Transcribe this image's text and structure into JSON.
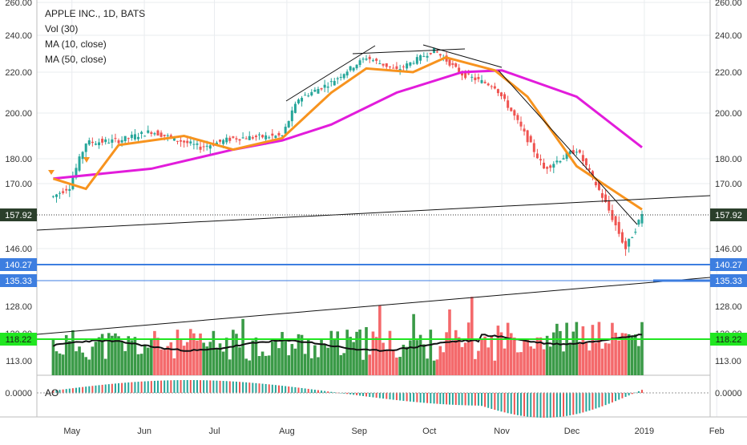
{
  "chart_data": {
    "type": "candlestick",
    "legend": [
      "APPLE INC., 1D, BATS",
      "Vol (30)",
      "MA (10, close)",
      "MA (50, close)"
    ],
    "ao_label": "AO",
    "x_labels": [
      "May",
      "Jun",
      "Jul",
      "Aug",
      "Sep",
      "Oct",
      "Nov",
      "Dec",
      "2019",
      "Feb"
    ],
    "price_axis_ticks": [
      "260.00",
      "240.00",
      "220.00",
      "200.00",
      "180.00",
      "170.00",
      "146.00"
    ],
    "volume_axis_ticks": [
      "128.00",
      "120.00",
      "113.00"
    ],
    "ao_axis_tick": "0.0000",
    "current_price_label": "157.92",
    "hline_labels": {
      "blue_upper": "140.27",
      "blue_lower": "135.33",
      "volume_ma": "118.22"
    },
    "price_ylim": [
      140,
      262
    ],
    "series": [
      {
        "name": "APPLE INC., 1D, BATS",
        "approx_closes": [
          {
            "date": "2018-04-23",
            "close": 165
          },
          {
            "date": "2018-04-30",
            "close": 169
          },
          {
            "date": "2018-05-07",
            "close": 187
          },
          {
            "date": "2018-05-21",
            "close": 188
          },
          {
            "date": "2018-06-04",
            "close": 192
          },
          {
            "date": "2018-06-25",
            "close": 185
          },
          {
            "date": "2018-07-09",
            "close": 189
          },
          {
            "date": "2018-07-30",
            "close": 190
          },
          {
            "date": "2018-08-06",
            "close": 207
          },
          {
            "date": "2018-08-20",
            "close": 215
          },
          {
            "date": "2018-09-04",
            "close": 228
          },
          {
            "date": "2018-09-17",
            "close": 221
          },
          {
            "date": "2018-10-03",
            "close": 232
          },
          {
            "date": "2018-10-15",
            "close": 219
          },
          {
            "date": "2018-10-29",
            "close": 213
          },
          {
            "date": "2018-11-05",
            "close": 201
          },
          {
            "date": "2018-11-19",
            "close": 176
          },
          {
            "date": "2018-12-03",
            "close": 184
          },
          {
            "date": "2018-12-14",
            "close": 165
          },
          {
            "date": "2018-12-24",
            "close": 146
          },
          {
            "date": "2018-12-31",
            "close": 157.92
          }
        ]
      },
      {
        "name": "MA (10, close)",
        "approx_values": [
          {
            "date": "2018-04-23",
            "value": 172
          },
          {
            "date": "2018-05-07",
            "value": 168
          },
          {
            "date": "2018-05-21",
            "value": 186
          },
          {
            "date": "2018-06-18",
            "value": 190
          },
          {
            "date": "2018-07-09",
            "value": 184
          },
          {
            "date": "2018-07-30",
            "value": 189
          },
          {
            "date": "2018-08-20",
            "value": 210
          },
          {
            "date": "2018-09-04",
            "value": 222
          },
          {
            "date": "2018-09-24",
            "value": 220
          },
          {
            "date": "2018-10-08",
            "value": 228
          },
          {
            "date": "2018-10-29",
            "value": 221
          },
          {
            "date": "2018-11-12",
            "value": 208
          },
          {
            "date": "2018-12-03",
            "value": 177
          },
          {
            "date": "2018-12-31",
            "value": 160
          }
        ]
      },
      {
        "name": "MA (50, close)",
        "approx_values": [
          {
            "date": "2018-04-23",
            "value": 172
          },
          {
            "date": "2018-06-04",
            "value": 176
          },
          {
            "date": "2018-07-09",
            "value": 184
          },
          {
            "date": "2018-07-30",
            "value": 188
          },
          {
            "date": "2018-08-20",
            "value": 195
          },
          {
            "date": "2018-09-17",
            "value": 210
          },
          {
            "date": "2018-10-15",
            "value": 220
          },
          {
            "date": "2018-11-01",
            "value": 221
          },
          {
            "date": "2018-12-03",
            "value": 208
          },
          {
            "date": "2018-12-31",
            "value": 185
          }
        ]
      }
    ],
    "colors": {
      "up": "#26a69a",
      "down": "#ef5350",
      "vol_up": "#3a9a47",
      "vol_down": "#f4696b",
      "ma10": "#f7931e",
      "ma50": "#e21cdb",
      "hline_blue": "#3d7ee0",
      "hline_green": "#21e621"
    }
  }
}
